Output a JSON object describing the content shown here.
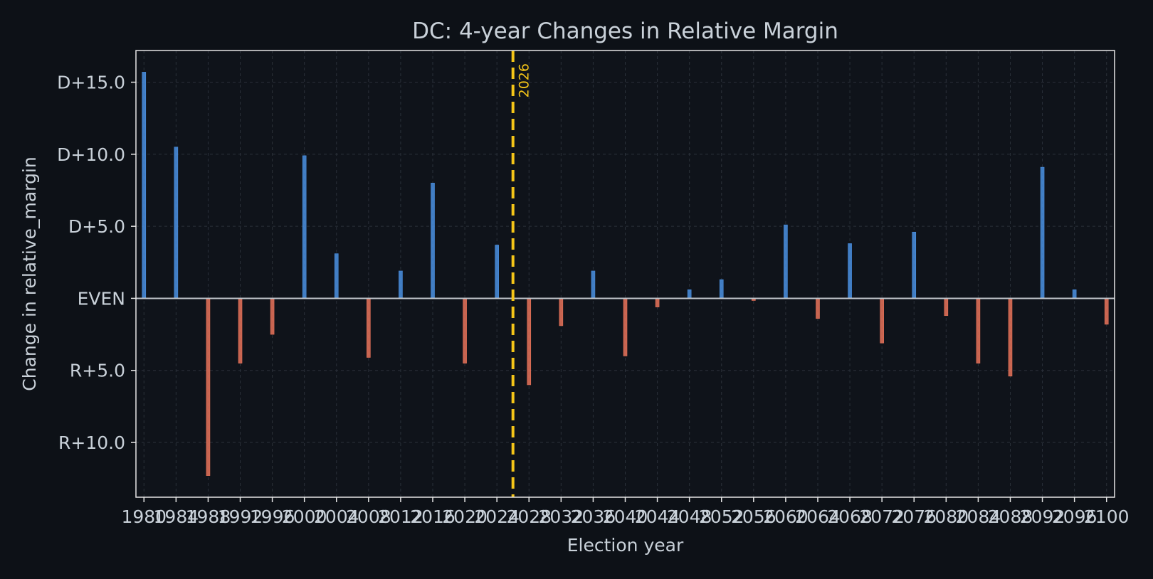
{
  "colors": {
    "background": "#0d1117",
    "plot_background": "#0f131a",
    "frame": "#e6e6e6",
    "text": "#c9d1d9",
    "grid": "#2b313a",
    "positive": "#4a90e2",
    "negative": "#e8735a",
    "zero_line": "#c0c4ca",
    "marker": "#f5c518"
  },
  "chart_data": {
    "type": "bar",
    "title": "DC: 4-year Changes in Relative Margin",
    "xlabel": "Election year",
    "ylabel": "Change in relative_margin",
    "x": [
      1980,
      1984,
      1988,
      1992,
      1996,
      2000,
      2004,
      2008,
      2012,
      2016,
      2020,
      2024,
      2028,
      2032,
      2036,
      2040,
      2044,
      2048,
      2052,
      2056,
      2060,
      2064,
      2068,
      2072,
      2076,
      2080,
      2084,
      2088,
      2092,
      2096,
      2100
    ],
    "values": [
      15.7,
      10.5,
      -12.3,
      -4.5,
      -2.5,
      9.9,
      3.1,
      -4.1,
      1.9,
      8.0,
      -4.5,
      3.7,
      -6.0,
      -1.9,
      1.9,
      -4.0,
      -0.6,
      0.6,
      1.3,
      -0.15,
      5.1,
      -1.4,
      3.8,
      -3.1,
      4.6,
      -1.2,
      -4.5,
      -5.4,
      9.1,
      0.6,
      -1.8
    ],
    "x_ticks": [
      1980,
      1984,
      1988,
      1992,
      1996,
      2000,
      2004,
      2008,
      2012,
      2016,
      2020,
      2024,
      2028,
      2032,
      2036,
      2040,
      2044,
      2048,
      2052,
      2056,
      2060,
      2064,
      2068,
      2072,
      2076,
      2080,
      2084,
      2088,
      2092,
      2096,
      2100
    ],
    "y_ticks": [
      {
        "value": 15,
        "label": "D+15.0"
      },
      {
        "value": 10,
        "label": "D+10.0"
      },
      {
        "value": 5,
        "label": "D+5.0"
      },
      {
        "value": 0,
        "label": "EVEN"
      },
      {
        "value": -5,
        "label": "R+5.0"
      },
      {
        "value": -10,
        "label": "R+10.0"
      }
    ],
    "xlim": [
      1979,
      2101
    ],
    "ylim": [
      -13.8,
      17.2
    ],
    "grid": true,
    "marker_line": {
      "x": 2026,
      "label": "2026"
    }
  }
}
